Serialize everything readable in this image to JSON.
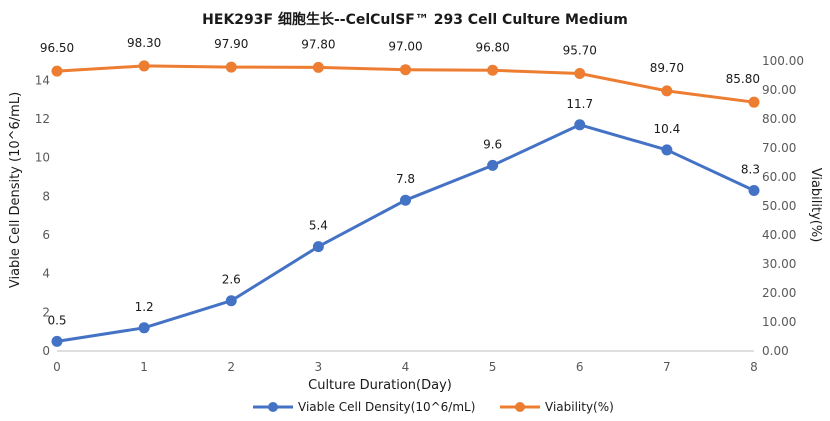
{
  "chart_data": {
    "type": "line",
    "title": "HEK293F 细胞生长--CelCulSF™ 293 Cell Culture Medium",
    "xlabel": "Culture Duration(Day)",
    "x": [
      0,
      1,
      2,
      3,
      4,
      5,
      6,
      7,
      8
    ],
    "y_left": {
      "label": "Viable  Cell Density (10^6/mL)",
      "ylim": [
        0,
        15
      ],
      "ticks": [
        0,
        2,
        4,
        6,
        8,
        10,
        12,
        14
      ],
      "tick_labels": [
        "0",
        "2",
        "4",
        "6",
        "8",
        "10",
        "12",
        "14"
      ]
    },
    "y_right": {
      "label": "Viability(%)",
      "ylim": [
        0,
        100
      ],
      "ticks": [
        0,
        10,
        20,
        30,
        40,
        50,
        60,
        70,
        80,
        90,
        100
      ],
      "tick_labels": [
        "0.00",
        "10.00",
        "20.00",
        "30.00",
        "40.00",
        "50.00",
        "60.00",
        "70.00",
        "80.00",
        "90.00",
        "100.00"
      ]
    },
    "grid": false,
    "legend_position": "bottom",
    "series": [
      {
        "name": "Viable  Cell Density(10^6/mL)",
        "axis": "left",
        "color": "#4472C4",
        "values": [
          0.5,
          1.2,
          2.6,
          5.4,
          7.8,
          9.6,
          11.7,
          10.4,
          8.3
        ],
        "labels": [
          "0.5",
          "1.2",
          "2.6",
          "5.4",
          "7.8",
          "9.6",
          "11.7",
          "10.4",
          "8.3"
        ]
      },
      {
        "name": "Viability(%)",
        "axis": "right",
        "color": "#ED7D31",
        "values": [
          96.5,
          98.3,
          97.9,
          97.8,
          97.0,
          96.8,
          95.7,
          89.7,
          85.8
        ],
        "labels": [
          "96.50",
          "98.30",
          "97.90",
          "97.80",
          "97.00",
          "96.80",
          "95.70",
          "89.70",
          "85.80"
        ]
      }
    ]
  }
}
